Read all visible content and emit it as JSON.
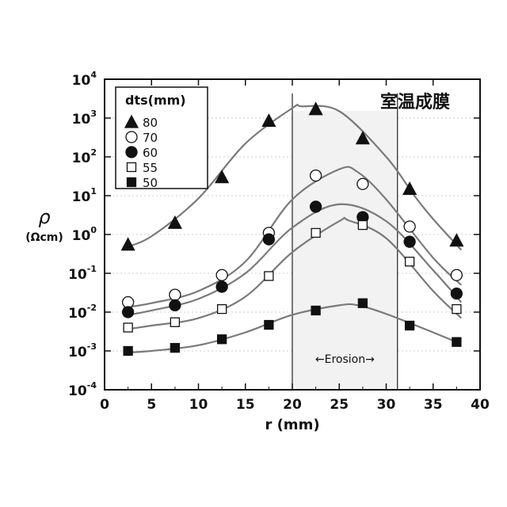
{
  "chart_data": {
    "type": "scatter",
    "xlabel": "r (mm)",
    "ylabel": "ρ",
    "ylabel_unit": "(Ωcm)",
    "xlim": [
      0,
      40
    ],
    "ylim_log10": [
      -4,
      4
    ],
    "yscale": "log",
    "x_ticks": [
      "0",
      "5",
      "10",
      "15",
      "20",
      "25",
      "30",
      "35",
      "40"
    ],
    "y_tick_exponents": [
      "-4",
      "-3",
      "-2",
      "-1",
      "0",
      "1",
      "2",
      "3",
      "4"
    ],
    "y_tick_base": "10",
    "grid": "horizontal dashed",
    "legend_title": "dts(mm)",
    "legend_position": "top-left",
    "annotation": "室温成膜",
    "region_label": "Erosion",
    "region_arrow_left": "←",
    "region_arrow_right": "→",
    "region_x": [
      20,
      31.2
    ],
    "series": [
      {
        "name": "80",
        "marker": "triangle-filled",
        "x": [
          2.5,
          7.5,
          12.5,
          17.5,
          22.5,
          27.5,
          32.5,
          37.5
        ],
        "y": [
          0.55,
          2.0,
          30,
          850,
          1700,
          300,
          15,
          0.7
        ],
        "curve_x": [
          2,
          5,
          10,
          15,
          20,
          21,
          25,
          30,
          33,
          35,
          38
        ],
        "curve_y": [
          0.45,
          0.9,
          8.5,
          220,
          1800,
          2000,
          1500,
          100,
          10,
          2.5,
          0.4
        ]
      },
      {
        "name": "70",
        "marker": "circle-open",
        "x": [
          2.5,
          7.5,
          12.5,
          17.5,
          22.5,
          27.5,
          32.5,
          37.5
        ],
        "y": [
          0.018,
          0.028,
          0.09,
          1.1,
          33,
          20,
          1.6,
          0.09
        ],
        "curve_x": [
          2,
          5,
          10,
          15,
          20,
          25,
          27,
          30,
          35,
          38
        ],
        "curve_y": [
          0.013,
          0.017,
          0.035,
          0.2,
          8,
          48,
          40,
          8,
          0.25,
          0.05
        ]
      },
      {
        "name": "60",
        "marker": "circle-filled",
        "x": [
          2.5,
          7.5,
          12.5,
          17.5,
          22.5,
          27.5,
          32.5,
          37.5
        ],
        "y": [
          0.01,
          0.015,
          0.045,
          0.75,
          5.2,
          2.8,
          0.65,
          0.03
        ],
        "curve_x": [
          2,
          5,
          10,
          15,
          20,
          25,
          30,
          35,
          38
        ],
        "curve_y": [
          0.008,
          0.011,
          0.022,
          0.1,
          1.5,
          6,
          2.2,
          0.12,
          0.018
        ]
      },
      {
        "name": "55",
        "marker": "square-open",
        "x": [
          2.5,
          7.5,
          12.5,
          17.5,
          22.5,
          27.5,
          32.5,
          37.5
        ],
        "y": [
          0.004,
          0.0055,
          0.012,
          0.085,
          1.1,
          1.75,
          0.2,
          0.012
        ],
        "curve_x": [
          2,
          5,
          10,
          15,
          20,
          25,
          26,
          30,
          35,
          38
        ],
        "curve_y": [
          0.0035,
          0.0045,
          0.007,
          0.025,
          0.35,
          2.2,
          2.3,
          0.8,
          0.035,
          0.007
        ]
      },
      {
        "name": "50",
        "marker": "square-filled",
        "x": [
          2.5,
          7.5,
          12.5,
          17.5,
          22.5,
          27.5,
          32.5,
          37.5
        ],
        "y": [
          0.001,
          0.0012,
          0.002,
          0.0047,
          0.011,
          0.017,
          0.0045,
          0.0017
        ],
        "curve_x": [
          2,
          5,
          10,
          15,
          20,
          25,
          27,
          30,
          35,
          38
        ],
        "curve_y": [
          0.0009,
          0.001,
          0.0014,
          0.003,
          0.0085,
          0.015,
          0.015,
          0.009,
          0.003,
          0.0015
        ]
      }
    ]
  }
}
